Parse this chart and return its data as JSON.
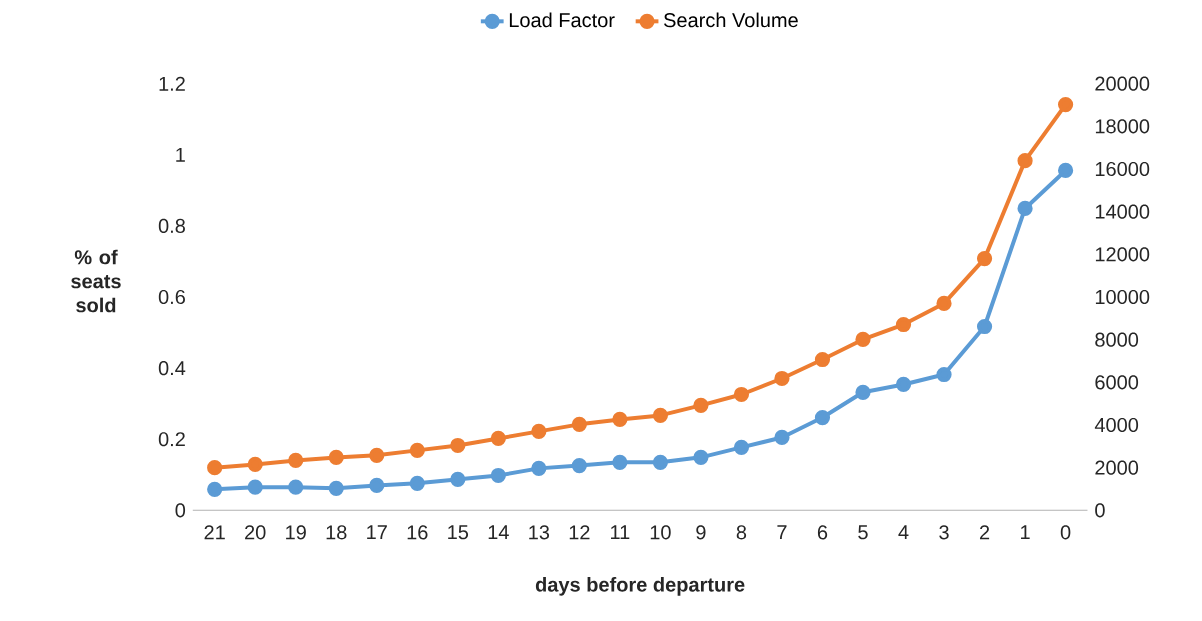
{
  "chart_data": {
    "type": "line",
    "xlabel": "days before departure",
    "ylabel": "% of seats sold",
    "categories": [
      "21",
      "20",
      "19",
      "18",
      "17",
      "16",
      "15",
      "14",
      "13",
      "12",
      "11",
      "10",
      "9",
      "8",
      "7",
      "6",
      "5",
      "4",
      "3",
      "2",
      "1",
      "0"
    ],
    "series": [
      {
        "name": "Load Factor",
        "color": "#5b9bd5",
        "values": [
          0.059,
          0.065,
          0.065,
          0.062,
          0.07,
          0.076,
          0.087,
          0.098,
          0.118,
          0.126,
          0.135,
          0.135,
          0.149,
          0.177,
          0.205,
          0.261,
          0.332,
          0.354,
          0.382,
          0.517,
          0.849,
          0.956
        ]
      },
      {
        "name": "Search Volume",
        "color": "#ed7d31",
        "axis": "y2",
        "values": [
          2000,
          2150,
          2340,
          2480,
          2580,
          2810,
          3040,
          3370,
          3700,
          4030,
          4260,
          4450,
          4920,
          5430,
          6180,
          7070,
          8010,
          8710,
          9700,
          11800,
          16390,
          19020
        ]
      }
    ],
    "ylim": [
      0,
      1.2
    ],
    "yticks": [
      0,
      0.2,
      0.4,
      0.6,
      0.8,
      1,
      1.2
    ],
    "y2lim": [
      0,
      20000
    ],
    "y2ticks": [
      0,
      2000,
      4000,
      6000,
      8000,
      10000,
      12000,
      14000,
      16000,
      18000,
      20000
    ],
    "legend": "top",
    "marker": "circle",
    "line_style": "solid",
    "grid": false
  }
}
